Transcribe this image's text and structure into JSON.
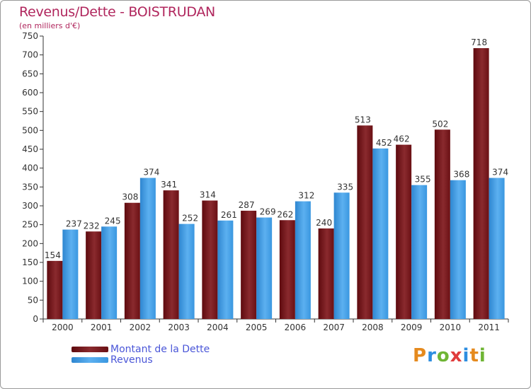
{
  "chart_data": {
    "type": "bar",
    "title": "Revenus/Dette - BOISTRUDAN",
    "subtitle": "(en milliers d'€)",
    "categories": [
      "2000",
      "2001",
      "2002",
      "2003",
      "2004",
      "2005",
      "2006",
      "2007",
      "2008",
      "2009",
      "2010",
      "2011"
    ],
    "series": [
      {
        "name": "Montant de la Dette",
        "color": "#6b0d12",
        "values": [
          154,
          232,
          308,
          341,
          314,
          287,
          262,
          240,
          513,
          462,
          502,
          718
        ]
      },
      {
        "name": "Revenus",
        "color": "#3a97e0",
        "values": [
          237,
          245,
          374,
          252,
          261,
          269,
          312,
          335,
          452,
          355,
          368,
          374
        ]
      }
    ],
    "ylim": [
      0,
      750
    ],
    "yticks": [
      0,
      50,
      100,
      150,
      200,
      250,
      300,
      350,
      400,
      450,
      500,
      550,
      600,
      650,
      700,
      750
    ],
    "grid": false,
    "legend_position": "bottom-left"
  },
  "logo": {
    "letters": [
      "P",
      "r",
      "o",
      "x",
      "i",
      "t",
      "i"
    ],
    "colors": [
      "#e58a1e",
      "#2d8ee0",
      "#6fb535",
      "#e03c3c",
      "#2d8ee0",
      "#e58a1e",
      "#6fb535"
    ]
  }
}
